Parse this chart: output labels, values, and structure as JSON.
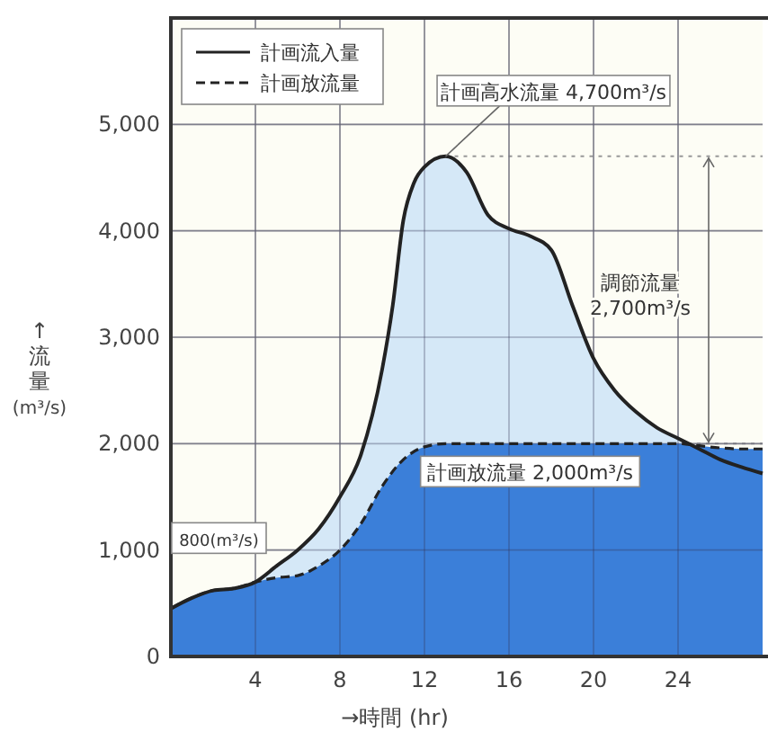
{
  "chart_data": {
    "type": "area",
    "xlabel": "→時間 (hr)",
    "ylabel": "↑流量 (m³/s)",
    "xlim": [
      0,
      28
    ],
    "ylim": [
      0,
      6000
    ],
    "xticks": [
      4,
      8,
      12,
      16,
      20,
      24
    ],
    "yticks": [
      0,
      {
        "value": 1000,
        "label": "1,000"
      },
      {
        "value": 2000,
        "label": "2,000"
      },
      {
        "value": 3000,
        "label": "3,000"
      },
      {
        "value": 4000,
        "label": "4,000"
      },
      {
        "value": 5000,
        "label": "5,000"
      }
    ],
    "grid": true,
    "legend": "top left",
    "series": [
      {
        "name": "計画流入量",
        "color": "#d5e8f7",
        "line_style": "solid",
        "x": [
          0,
          1,
          2,
          3,
          4,
          5,
          6,
          7,
          8,
          9,
          10,
          10.5,
          11,
          11.5,
          12,
          13,
          14,
          15,
          16,
          17,
          18,
          19,
          20,
          21,
          22,
          23,
          24,
          25,
          26,
          27,
          28
        ],
        "values": [
          450,
          550,
          620,
          640,
          700,
          850,
          1000,
          1200,
          1500,
          1900,
          2700,
          3300,
          4100,
          4450,
          4600,
          4700,
          4550,
          4150,
          4020,
          3950,
          3820,
          3300,
          2800,
          2500,
          2300,
          2150,
          2050,
          1950,
          1850,
          1780,
          1720
        ]
      },
      {
        "name": "計画放流量",
        "color": "#3b7fd9",
        "line_style": "dashed",
        "x": [
          0,
          1,
          2,
          3,
          4,
          5,
          6,
          7,
          8,
          9,
          10,
          11,
          12,
          13,
          14,
          16,
          18,
          20,
          22,
          24,
          25,
          26,
          27,
          28
        ],
        "values": [
          450,
          550,
          620,
          640,
          700,
          740,
          760,
          850,
          1000,
          1250,
          1600,
          1850,
          1970,
          2000,
          2000,
          2000,
          2000,
          2000,
          2000,
          2000,
          1980,
          1960,
          1950,
          1950
        ]
      }
    ],
    "ref_lines": [
      {
        "axis": "y",
        "value": 4700,
        "line_style": "dotted",
        "color": "#999999"
      },
      {
        "axis": "y",
        "value": 2000,
        "line_style": "dotted",
        "color": "#999999"
      }
    ],
    "annotations": [
      {
        "text": "計画高水流量 4,700m³/s",
        "x": 13,
        "y": 4700
      },
      "調節流量 2,700m³/s",
      {
        "text": "計画放流量 2,000m³/s",
        "x": 17,
        "y": 2000
      },
      {
        "text": "800(m³/s)",
        "x": 4,
        "y": 800
      }
    ]
  }
}
